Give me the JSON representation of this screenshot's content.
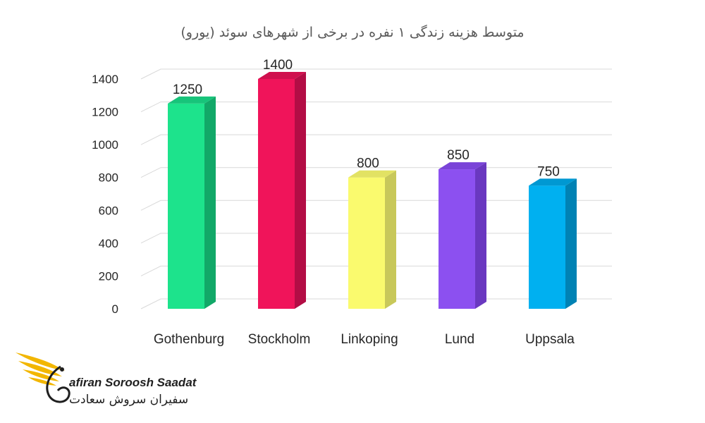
{
  "chart_data": {
    "type": "bar",
    "title": "متوسط هزینه زندگی ۱ نفره در برخی از شهرهای سوئد (یورو)",
    "categories": [
      "Gothenburg",
      "Stockholm",
      "Linkoping",
      "Lund",
      "Uppsala"
    ],
    "values": [
      1250,
      1400,
      800,
      850,
      750
    ],
    "data_labels": [
      "1250",
      "1400",
      "800",
      "850",
      "750"
    ],
    "y_ticks": [
      0,
      200,
      400,
      600,
      800,
      1000,
      1200,
      1400
    ],
    "ylim": [
      0,
      1400
    ],
    "grid": true,
    "bar_colors": [
      "#1de38c",
      "#f0145a",
      "#fafa6e",
      "#8c50f0",
      "#00b0f0"
    ],
    "bar_side_colors": [
      "#12a868",
      "#b30d45",
      "#c8c85a",
      "#6a38c0",
      "#0082b4"
    ],
    "bar_top_colors": [
      "#17c47a",
      "#d0104e",
      "#e2e263",
      "#7a44d8",
      "#0098d2"
    ]
  },
  "logo": {
    "name_en": "afiran Soroosh Saadat",
    "name_fa": "سفیران سروش سعادت"
  },
  "colors": {
    "grid": "#d9d9d9",
    "logo_gold": "#f2b600"
  }
}
